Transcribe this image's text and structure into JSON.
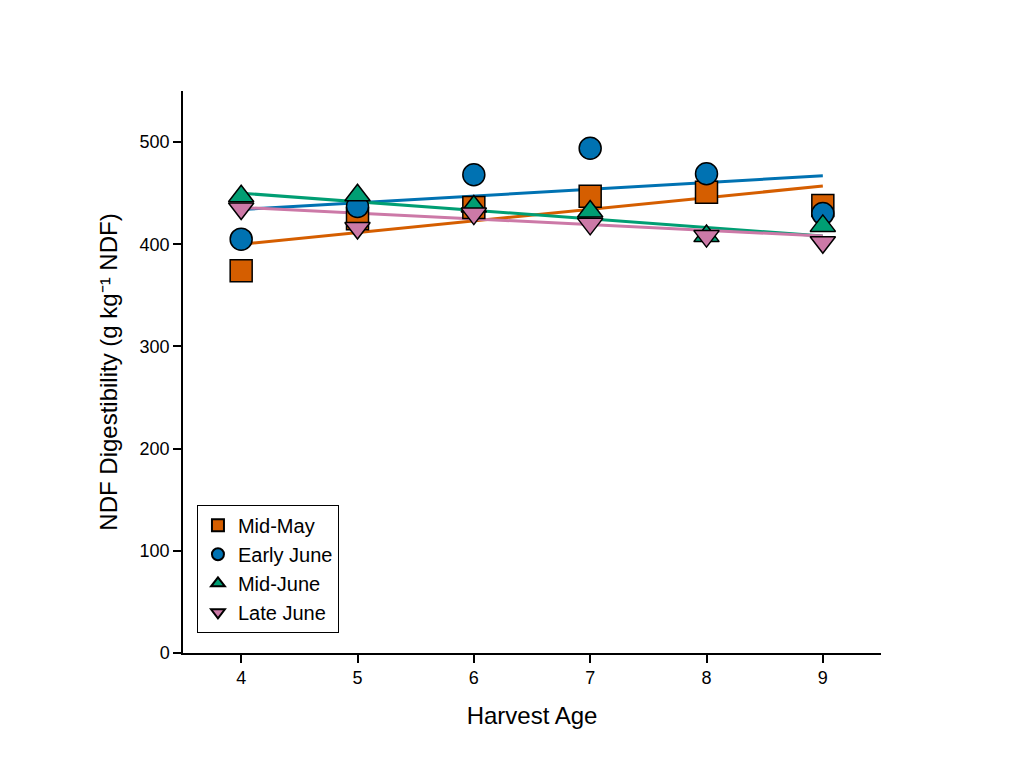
{
  "chart_data": {
    "type": "scatter",
    "x_label": "Harvest Age",
    "y_label": "NDF Digestibility (g kg⁻¹ NDF)",
    "x": [
      4,
      5,
      6,
      7,
      8,
      9
    ],
    "trend_x": [
      4,
      9
    ],
    "series": [
      {
        "name": "Mid-May",
        "color": "#d55e00",
        "marker": "square",
        "values": [
          374,
          425,
          436,
          447,
          451,
          438
        ],
        "trend": [
          400,
          457
        ]
      },
      {
        "name": "Early June",
        "color": "#0072b2",
        "marker": "circle",
        "values": [
          405,
          437,
          468,
          494,
          469,
          430
        ],
        "trend": [
          434,
          467
        ]
      },
      {
        "name": "Mid-June",
        "color": "#009e73",
        "marker": "triangle-up",
        "values": [
          447,
          448,
          437,
          432,
          408,
          418
        ],
        "trend": [
          450,
          408
        ]
      },
      {
        "name": "Late June",
        "color": "#cc79a7",
        "marker": "triangle-down",
        "values": [
          435,
          416,
          430,
          420,
          408,
          402
        ],
        "trend": [
          436,
          408
        ]
      }
    ],
    "xlim": [
      3.5,
      9.5
    ],
    "xticks": [
      4,
      5,
      6,
      7,
      8,
      9
    ],
    "ylim": [
      0,
      550
    ],
    "yticks": [
      0,
      100,
      200,
      300,
      400,
      500
    ],
    "grid": false,
    "legend": "lower left"
  }
}
